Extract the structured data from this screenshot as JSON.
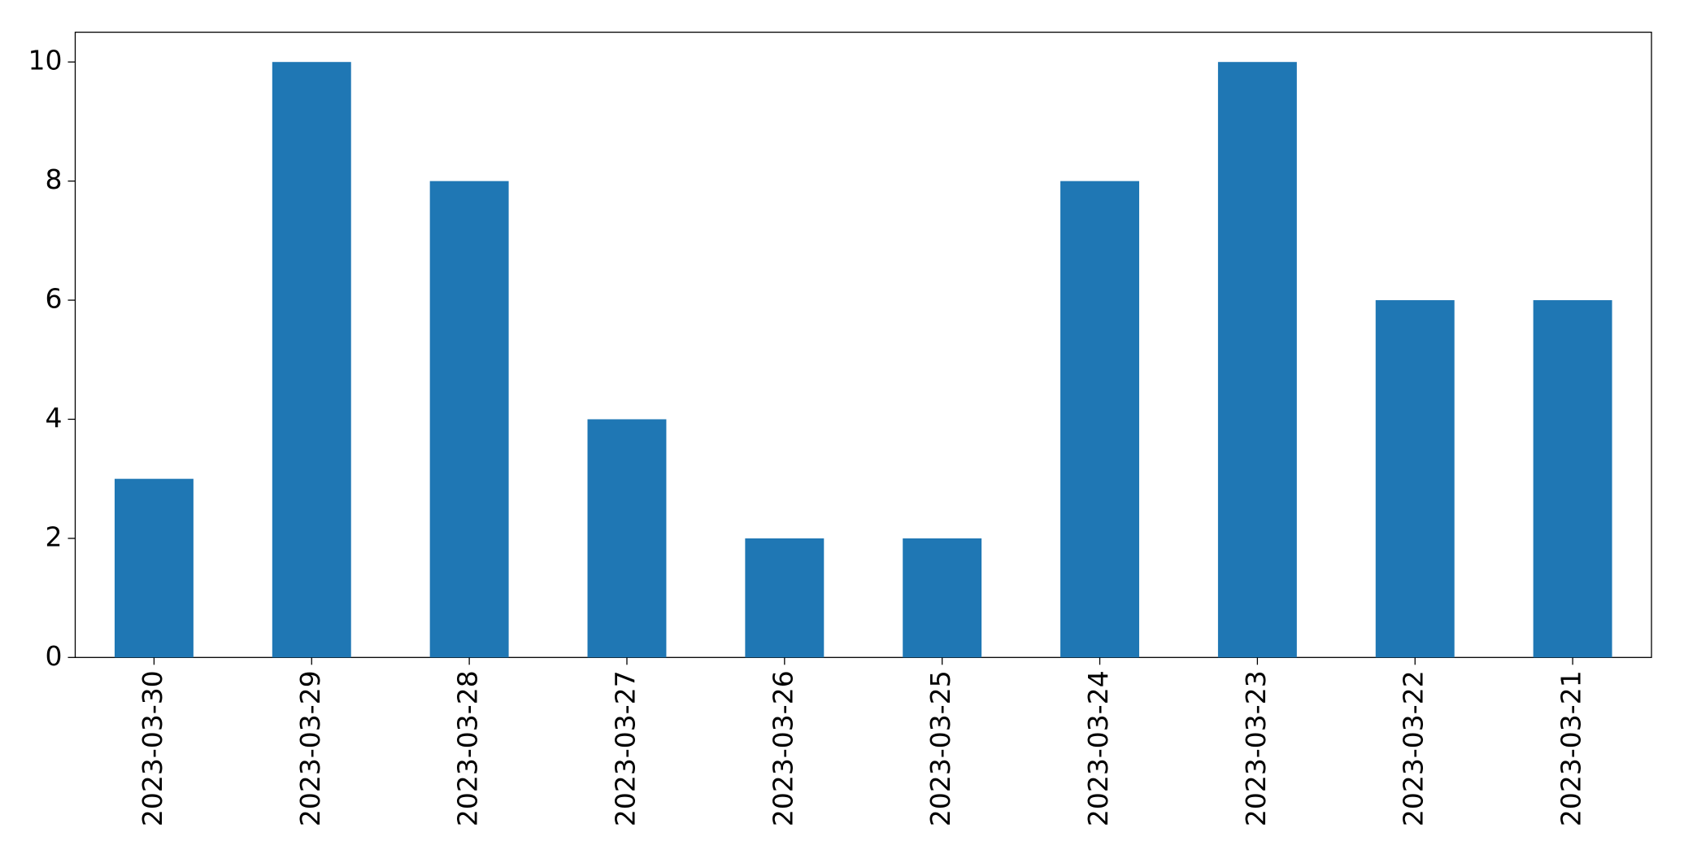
{
  "chart_data": {
    "type": "bar",
    "categories": [
      "2023-03-30",
      "2023-03-29",
      "2023-03-28",
      "2023-03-27",
      "2023-03-26",
      "2023-03-25",
      "2023-03-24",
      "2023-03-23",
      "2023-03-22",
      "2023-03-21"
    ],
    "values": [
      3,
      10,
      8,
      4,
      2,
      2,
      8,
      10,
      6,
      6
    ],
    "color": "#1f77b4",
    "ylim": [
      0,
      10.5
    ],
    "yticks": [
      0,
      2,
      4,
      6,
      8,
      10
    ],
    "grid": false
  }
}
